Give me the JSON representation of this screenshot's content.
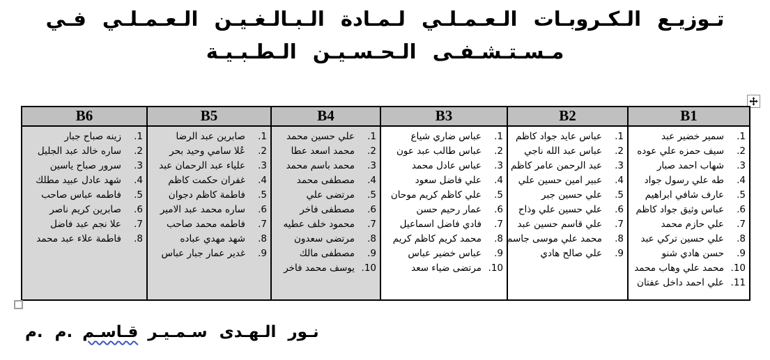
{
  "title": {
    "line1": "تـوزيـع الـكـروبـات الـعـمـلـي لـمـادة الـبـالـغـيـن الـعـمـلـي فـي",
    "line2": "مـسـتـشـفـى الـحـسـيـن الـطـبـيـة"
  },
  "table": {
    "columns": [
      {
        "id": "B1",
        "header": "B1",
        "shaded": false,
        "items": [
          "سمير خضير عبد",
          "سيف حمزه علي عوده",
          "شهاب احمد صبار",
          "طه علي رسول جواد",
          "عارف شافي ابراهيم",
          "عباس وثيق جواد كاظم",
          "علي حازم محمد",
          "علي حسين تركي عبد",
          "حسن هادي شنو",
          "محمد علي وهاب محمد",
          "علي احمد داخل عفتان"
        ]
      },
      {
        "id": "B2",
        "header": "B2",
        "shaded": false,
        "items": [
          "عباس عايد جواد كاظم",
          "عباس عبد الله ناجي",
          "عبد الرحمن عامر كاظم",
          "عبير امين حسين علي",
          "علي حسين جبر",
          "علي حسين علي وذاح",
          "علي قاسم حسين عبد",
          "محمد علي موسى جاسم",
          "علي صالح هادي"
        ]
      },
      {
        "id": "B3",
        "header": "B3",
        "shaded": false,
        "items": [
          "عباس ضاري شياع",
          "عباس طالب عبد عون",
          "عباس عادل محمد",
          "علي فاضل سعود",
          "علي كاظم كريم موحان",
          "عمار رحيم حسن",
          "فادي فاضل اسماعيل",
          "محمد كريم كاظم كريم",
          "عباس خضير عباس",
          "مرتضى ضياء سعد"
        ]
      },
      {
        "id": "B4",
        "header": "B4",
        "shaded": true,
        "items": [
          "علي حسين محمد",
          "محمد اسعد عطا",
          "محمد باسم محمد",
          "مصطفى محمد",
          "مرتضى علي",
          "مصطفى فاخر",
          "محمود خلف عطيه",
          "مرتضى سعدون",
          "مصطفى مالك",
          "يوسف محمد فاخر"
        ]
      },
      {
        "id": "B5",
        "header": "B5",
        "shaded": true,
        "items": [
          "صابرين عبد الرضا",
          "عُلا سامي وحيد بحر",
          "علياء عبد الرحمان عبد",
          "غفران حكمت كاظم",
          "فاطمة كاظم دجوان",
          "ساره محمد عبد الامير",
          "فاطمه محمد صاحب",
          "شهد مهدي عباده",
          "غدير عمار جبار عباس"
        ]
      },
      {
        "id": "B6",
        "header": "B6",
        "shaded": true,
        "items": [
          "زينه صباح جبار",
          "ساره خالد عبد الجليل",
          "سرور صباح ياسين",
          "شهد عادل عبيد مطلك",
          "فاطمه عباس صاحب",
          "صابرين كريم ناصر",
          "علا نجم عبد فاضل",
          "فاطمة علاء عبد محمد"
        ]
      }
    ]
  },
  "footer": {
    "degree": "م .م.",
    "name_main": "نـور الـهـدى سـمـيـر",
    "name_flagged": "قـاسـم"
  },
  "colors": {
    "header_bg": "#c0c0c0",
    "shaded_bg": "#d7d7d7",
    "border": "#000000",
    "squiggle": "#3a57c4"
  }
}
